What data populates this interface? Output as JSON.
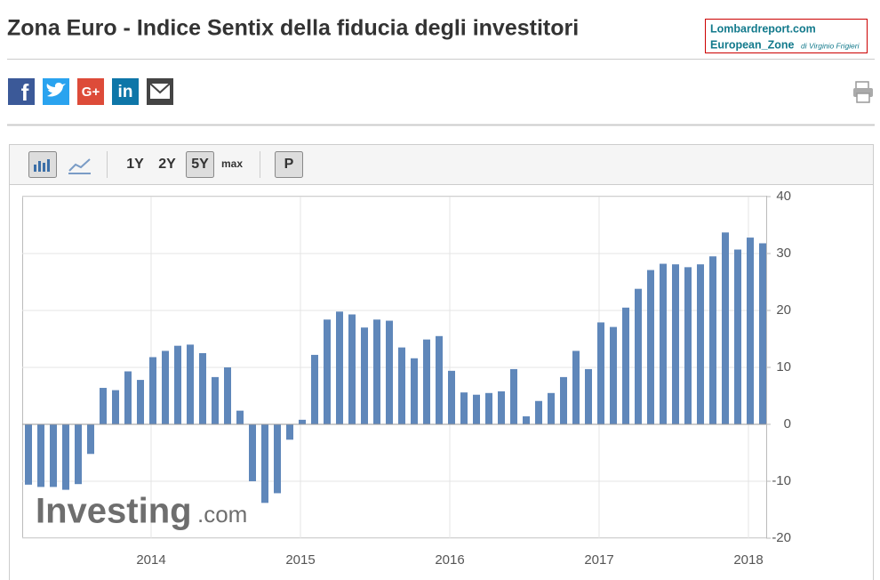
{
  "header": {
    "title": "Zona Euro - Indice Sentix della fiducia degli investitori"
  },
  "brand": {
    "line1": "Lombardreport.com",
    "line2": "European_Zone",
    "author": "di Virginio Frigieri"
  },
  "share": {
    "facebook": "f",
    "google": "G+",
    "linkedin": "in"
  },
  "toolbar": {
    "ranges": [
      "1Y",
      "2Y",
      "5Y",
      "max"
    ],
    "active": "5Y",
    "p_button": "P"
  },
  "watermark": {
    "brand": "Investing",
    "suffix": ".com"
  },
  "chart_data": {
    "type": "bar",
    "categories": [
      null,
      null,
      null,
      null,
      null,
      null,
      null,
      null,
      null,
      null,
      null,
      null,
      null,
      null,
      null,
      null,
      null,
      null,
      null,
      null,
      null,
      null,
      null,
      null,
      null,
      null,
      null,
      null,
      null,
      null,
      null,
      null,
      null,
      null,
      null,
      null,
      null,
      null,
      null,
      null,
      null,
      null,
      null,
      null,
      null,
      null,
      null,
      null,
      null,
      null,
      null,
      null,
      null,
      null,
      null,
      null,
      null,
      null,
      null,
      null
    ],
    "values": [
      -10.6,
      -11,
      -11,
      -11.5,
      -10.5,
      -5.2,
      6.4,
      6.0,
      9.3,
      7.8,
      11.8,
      12.9,
      13.8,
      14.0,
      12.5,
      8.3,
      10.0,
      2.4,
      -10.0,
      -13.8,
      -12.1,
      -2.7,
      0.8,
      12.2,
      18.4,
      19.8,
      19.3,
      17.0,
      18.4,
      18.2,
      13.5,
      11.6,
      14.9,
      15.5,
      9.4,
      5.6,
      5.2,
      5.5,
      5.8,
      9.7,
      1.4,
      4.1,
      5.5,
      8.3,
      12.9,
      9.7,
      17.9,
      17.1,
      20.5,
      23.8,
      27.1,
      28.2,
      28.1,
      27.6,
      28.1,
      29.5,
      33.7,
      30.7,
      32.8,
      31.8
    ],
    "color": "#5f87ba",
    "year_labels": [
      "2014",
      "2015",
      "2016",
      "2017",
      "2018"
    ],
    "ylim": [
      -20,
      40
    ],
    "yticks": [
      -20,
      -10,
      0,
      10,
      20,
      30,
      40
    ],
    "grid": true
  }
}
